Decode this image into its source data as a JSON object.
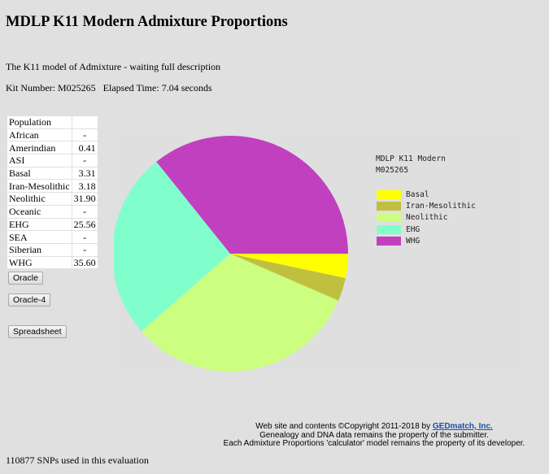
{
  "page": {
    "title": "MDLP K11 Modern Admixture Proportions",
    "description": "The K11 model of Admixture - waiting full description",
    "kit_label": "Kit Number:",
    "kit_number": "M025265",
    "elapsed_label": "Elapsed Time:",
    "elapsed_value": "7.04 seconds"
  },
  "table": {
    "header": [
      "Population",
      ""
    ],
    "rows": [
      {
        "population": "African",
        "value": "-"
      },
      {
        "population": "Amerindian",
        "value": "0.41"
      },
      {
        "population": "ASI",
        "value": "-"
      },
      {
        "population": "Basal",
        "value": "3.31"
      },
      {
        "population": "Iran-Mesolithic",
        "value": "3.18"
      },
      {
        "population": "Neolithic",
        "value": "31.90"
      },
      {
        "population": "Oceanic",
        "value": "-"
      },
      {
        "population": "EHG",
        "value": "25.56"
      },
      {
        "population": "SEA",
        "value": "-"
      },
      {
        "population": "Siberian",
        "value": "-"
      },
      {
        "population": "WHG",
        "value": "35.60"
      }
    ]
  },
  "buttons": {
    "oracle": "Oracle",
    "oracle4": "Oracle-4",
    "spreadsheet": "Spreadsheet"
  },
  "chart_data": {
    "type": "pie",
    "title": "MDLP K11 Modern",
    "subtitle": "M025265",
    "categories": [
      "Basal",
      "Iran-Mesolithic",
      "Neolithic",
      "EHG",
      "WHG"
    ],
    "values": [
      3.31,
      3.18,
      31.9,
      25.56,
      35.6
    ],
    "colors": [
      "#ffff00",
      "#c0c040",
      "#ccff80",
      "#80ffcc",
      "#c040c0"
    ],
    "start_angle_deg": 0,
    "direction": "clockwise",
    "legend_position": "right"
  },
  "footer": {
    "line1_prefix": "Web site and contents ©Copyright 2011-2018 by ",
    "line1_link": "GEDmatch, Inc.",
    "line2": "Genealogy and DNA data remains the property of the submitter.",
    "line3": "Each Admixture Proportions 'calculator' model remains the property of its developer."
  },
  "snps_text": "110877 SNPs used in this evaluation"
}
